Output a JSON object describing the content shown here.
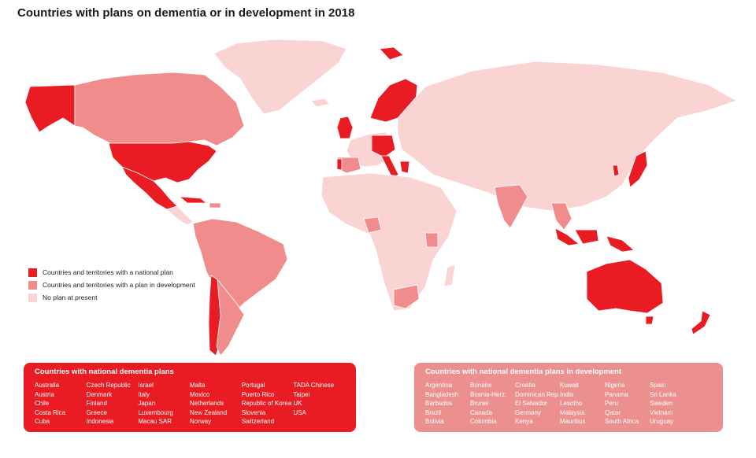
{
  "title": "Countries with plans on dementia or in development in 2018",
  "colors": {
    "national_plan": "#ea1c23",
    "plan_in_development": "#f08c8c",
    "no_plan": "#fad3d3"
  },
  "legend": {
    "national": "Countries and territories with a national plan",
    "development": "Countries and territories with a plan in development",
    "none": "No plan at present"
  },
  "national_panel": {
    "title": "Countries with national dementia plans",
    "columns": [
      [
        "Australia",
        "Austria",
        "Chile",
        "Costa Rica",
        "Cuba"
      ],
      [
        "Czech Republic",
        "Denmark",
        "Finland",
        "Greece",
        "Indonesia"
      ],
      [
        "Israel",
        "Italy",
        "Japan",
        "Luxembourg",
        "Macau SAR"
      ],
      [
        "Malta",
        "Mexico",
        "Netherlands",
        "New Zealand",
        "Norway"
      ],
      [
        "Portugal",
        "Puerto Rico",
        "Republic of Korea",
        "Slovenia",
        "Switzerland"
      ],
      [
        "TADA Chinese Taipei",
        "UK",
        "USA"
      ]
    ]
  },
  "development_panel": {
    "title": "Countries with national dementia plans in development",
    "columns": [
      [
        "Argentina",
        "Bangladesh",
        "Barbados",
        "Brazil",
        "Bolivia"
      ],
      [
        "Bonaire",
        "Bosnia-Herz.",
        "Brunei",
        "Canada",
        "Colombia"
      ],
      [
        "Croatia",
        "Dominican Rep.",
        "El Salvador",
        "Germany",
        "Kenya"
      ],
      [
        "Kuwait",
        "India",
        "Lesotho",
        "Malaysia",
        "Mauritius"
      ],
      [
        "Nigeria",
        "Panama",
        "Peru",
        "Qatar",
        "South Africa"
      ],
      [
        "Spain",
        "Sri Lanka",
        "Sweden",
        "Vietnam",
        "Uruguay"
      ]
    ]
  }
}
